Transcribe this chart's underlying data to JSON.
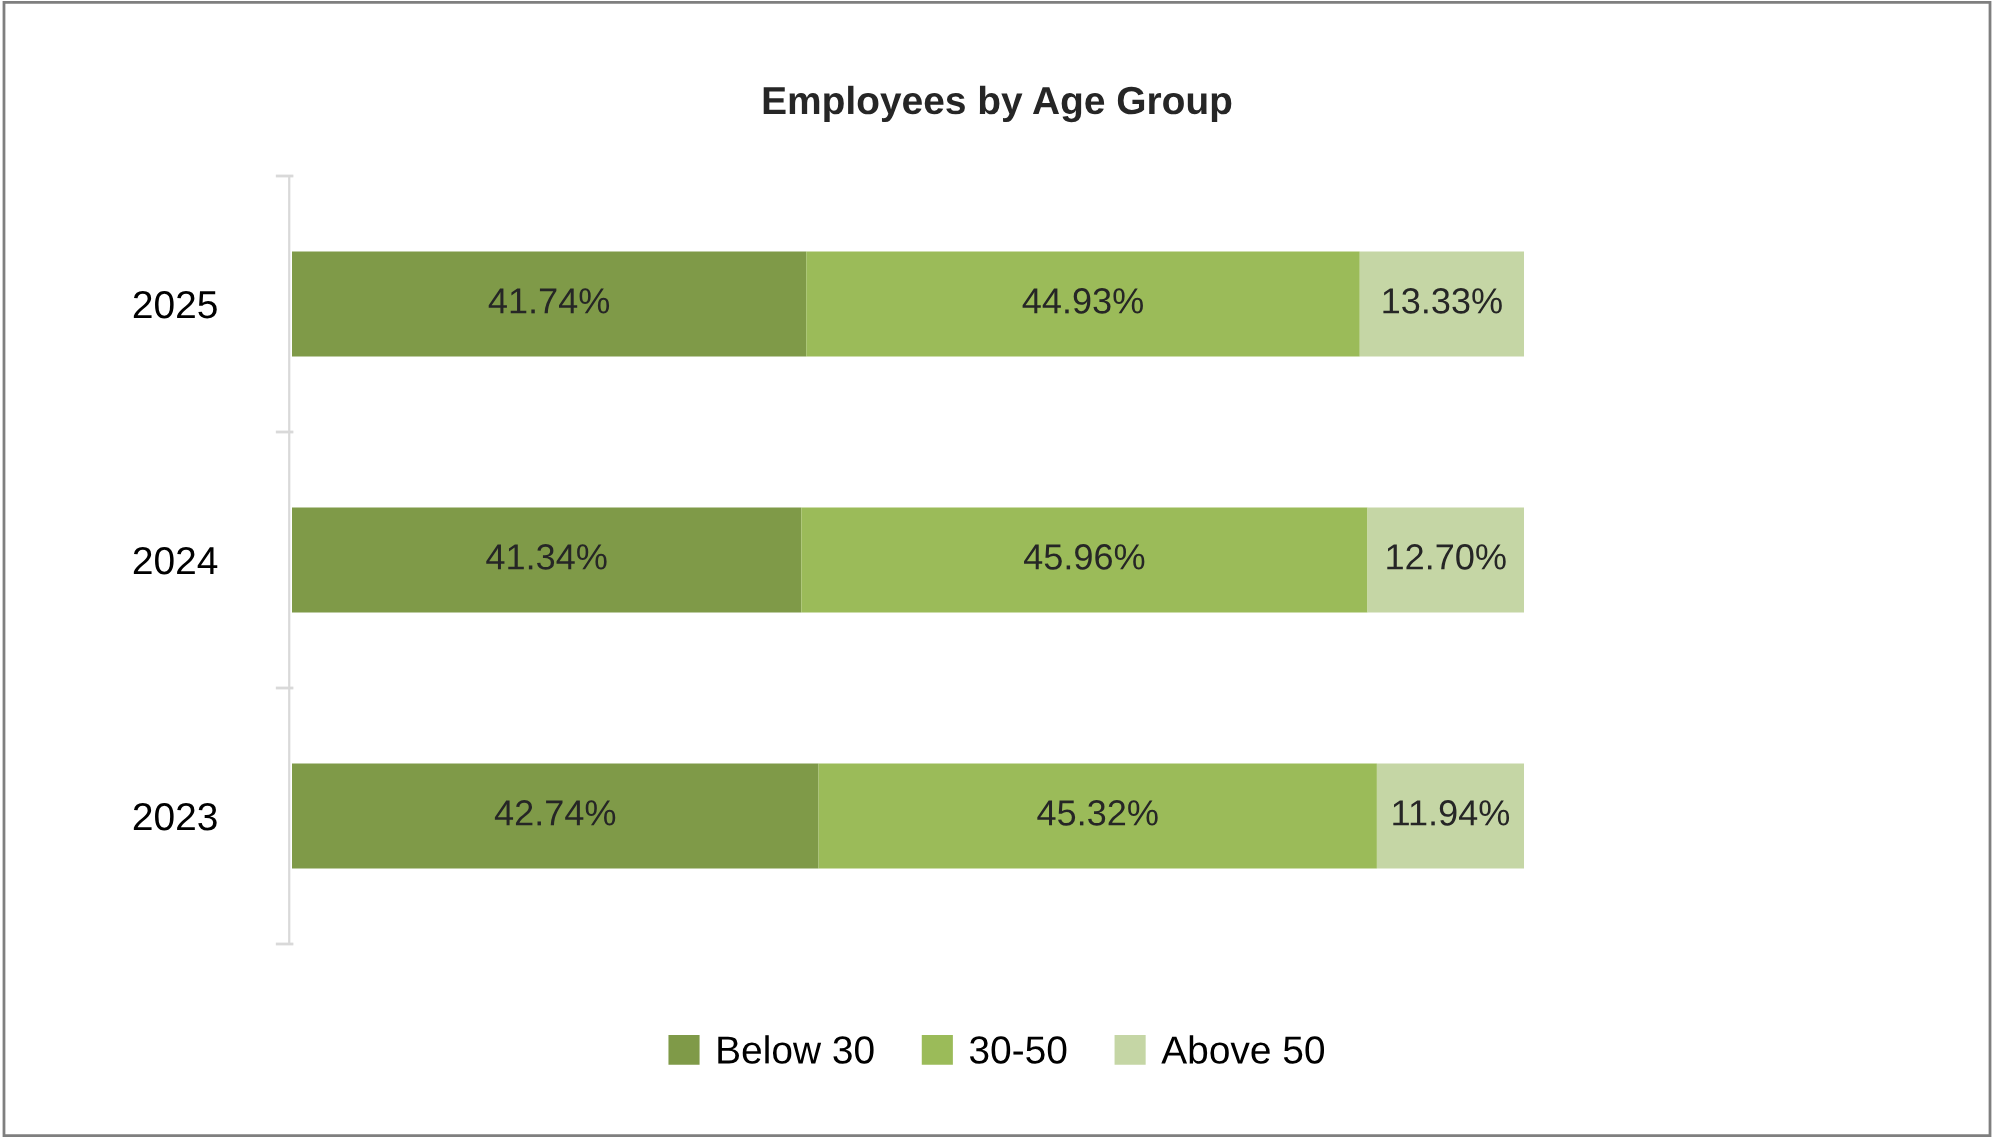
{
  "chart_data": {
    "type": "bar",
    "orientation": "horizontal",
    "stacked": true,
    "title": "Employees by Age Group",
    "categories": [
      "2025",
      "2024",
      "2023"
    ],
    "series": [
      {
        "name": "Below 30",
        "color": "#7f9a48",
        "values": [
          41.74,
          41.34,
          42.74
        ],
        "value_labels": [
          "41.74%",
          "41.34%",
          "42.74%"
        ]
      },
      {
        "name": "30-50",
        "color": "#9bbb59",
        "values": [
          44.93,
          45.96,
          45.32
        ],
        "value_labels": [
          "44.93%",
          "45.96%",
          "45.32%"
        ]
      },
      {
        "name": "Above 50",
        "color": "#c5d6a5",
        "values": [
          13.33,
          12.7,
          11.94
        ],
        "value_labels": [
          "13.33%",
          "12.70%",
          "11.94%"
        ]
      }
    ],
    "legend": "bottom",
    "grid": false,
    "tick_labels": "y"
  }
}
